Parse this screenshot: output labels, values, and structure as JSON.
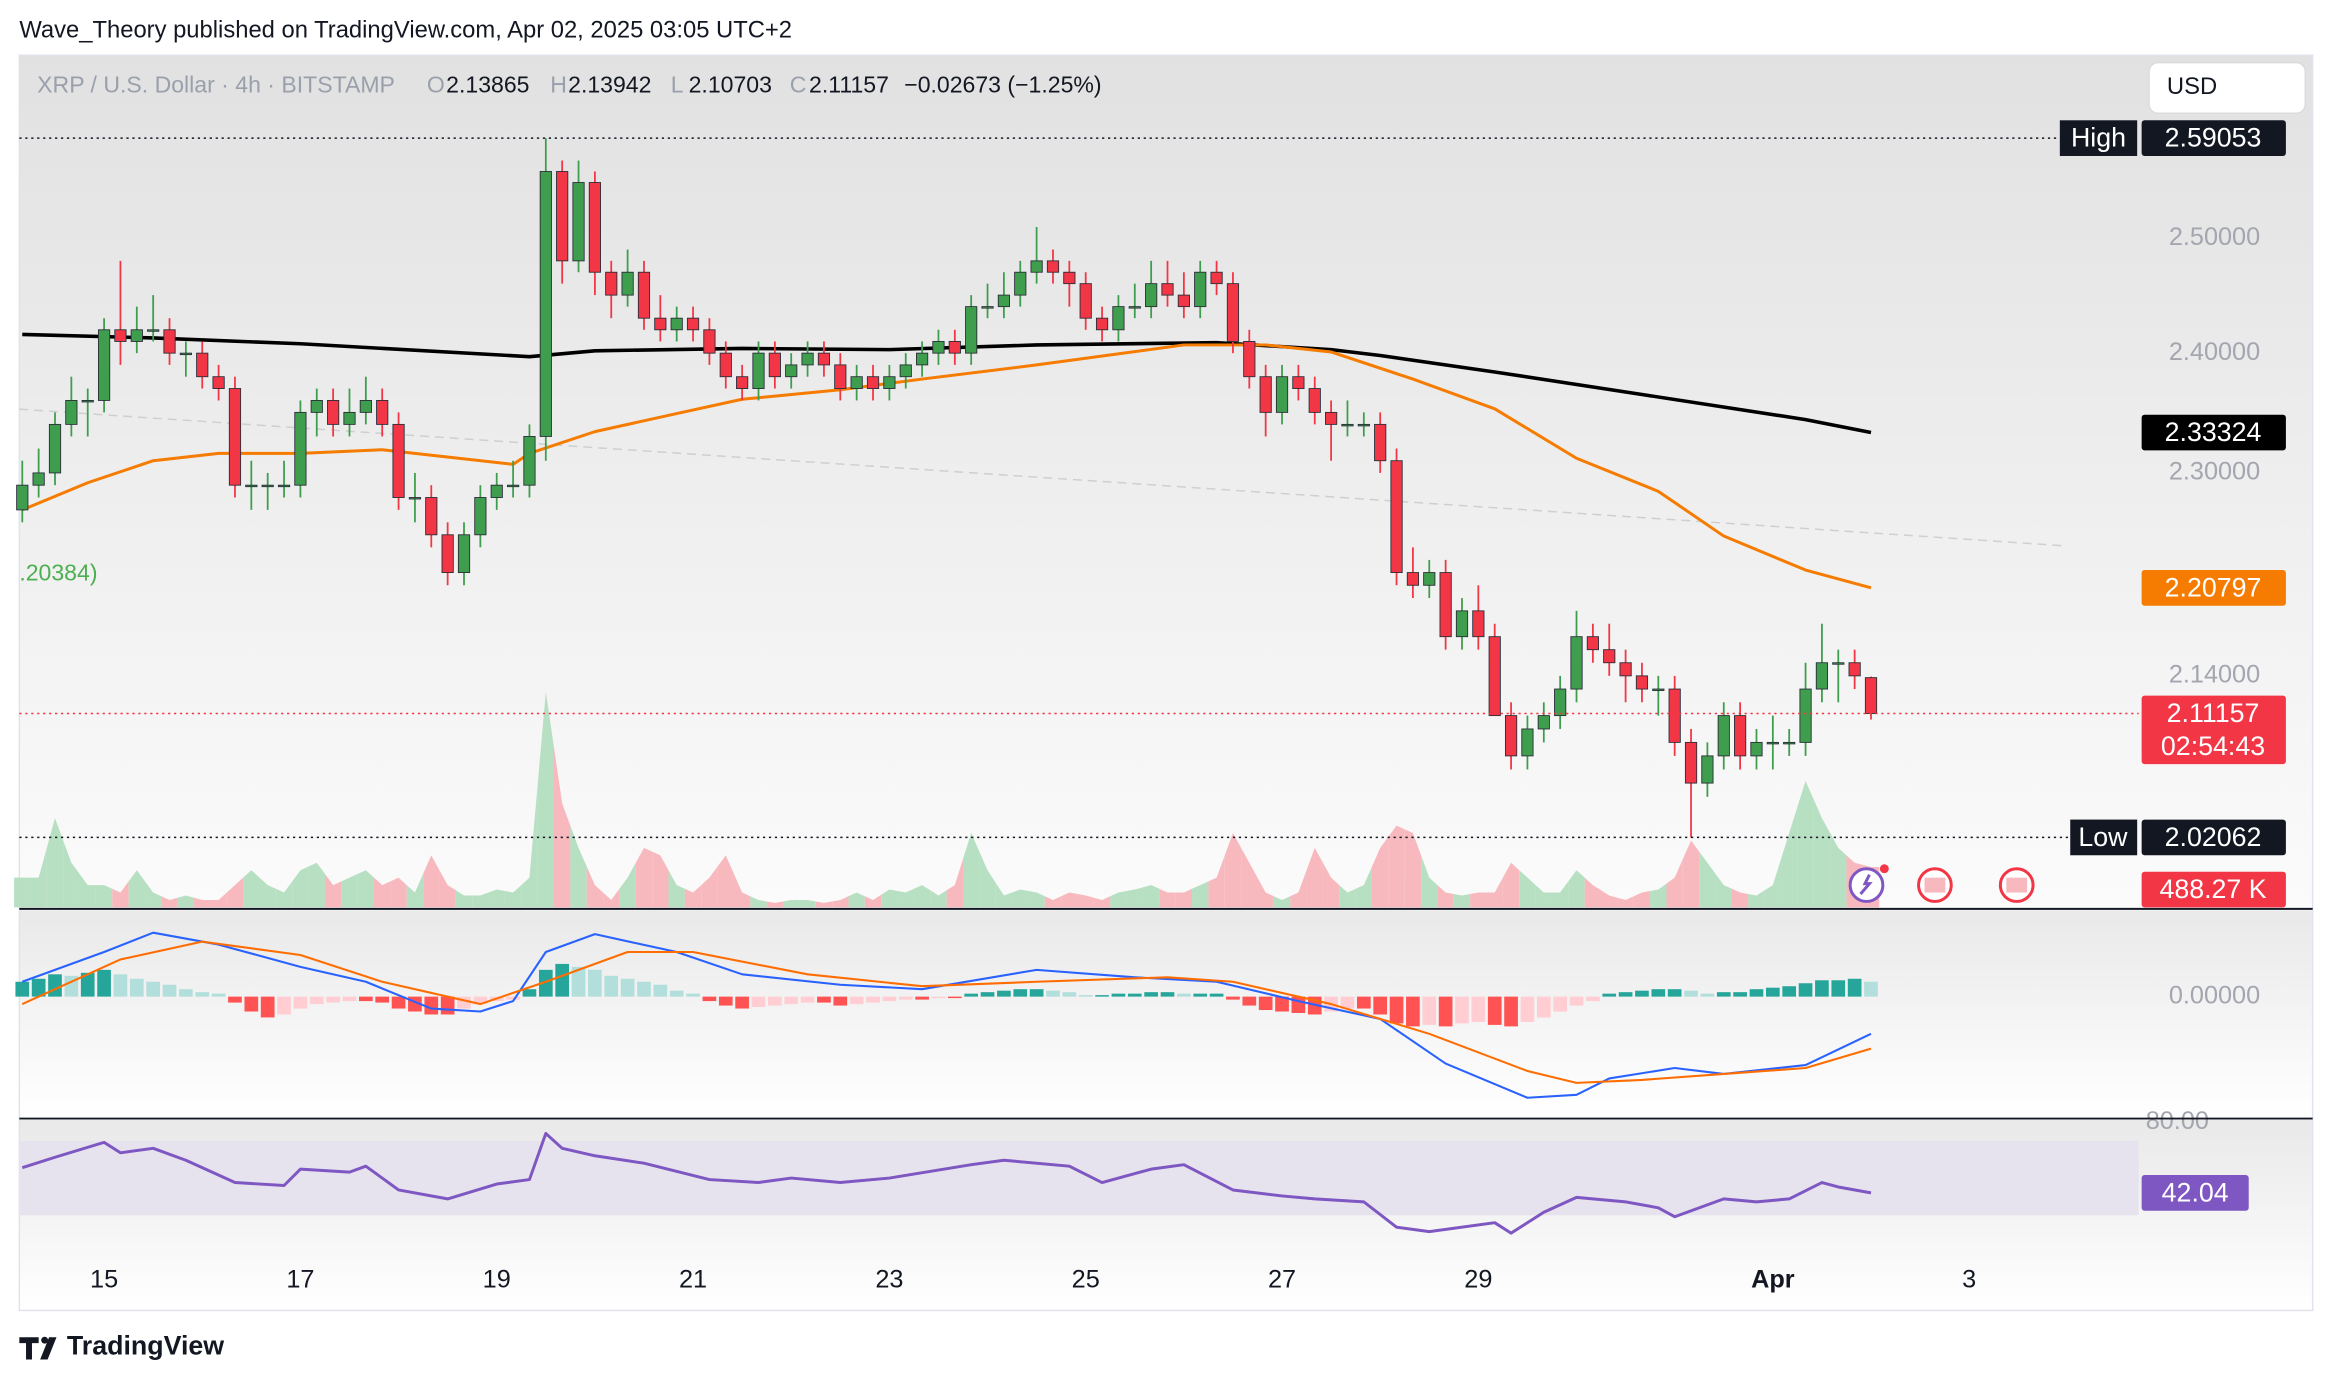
{
  "publisher": "Wave_Theory published on TradingView.com, Apr 02, 2025 03:05 UTC+2",
  "footer_brand": "TradingView",
  "currency_button": "USD",
  "chart_data": {
    "type": "candlestick",
    "symbol": "XRP / U.S. Dollar · 4h · BITSTAMP",
    "ohlc_letters": [
      "O",
      "H",
      "L",
      "C"
    ],
    "change_label": "−0.02673 (−1.25%)",
    "indicator_fragment": ".20384)",
    "up_color": "#3f9e4d",
    "down_color": "#f23645",
    "ohlc": [
      [
        2.27,
        2.31,
        2.26,
        2.29
      ],
      [
        2.29,
        2.32,
        2.28,
        2.3
      ],
      [
        2.3,
        2.35,
        2.29,
        2.34
      ],
      [
        2.34,
        2.38,
        2.33,
        2.36
      ],
      [
        2.36,
        2.37,
        2.33,
        2.36
      ],
      [
        2.36,
        2.43,
        2.35,
        2.42
      ],
      [
        2.42,
        2.48,
        2.39,
        2.41
      ],
      [
        2.41,
        2.44,
        2.4,
        2.42
      ],
      [
        2.42,
        2.45,
        2.41,
        2.42
      ],
      [
        2.42,
        2.43,
        2.39,
        2.4
      ],
      [
        2.4,
        2.41,
        2.38,
        2.4
      ],
      [
        2.4,
        2.41,
        2.37,
        2.38
      ],
      [
        2.38,
        2.39,
        2.36,
        2.37
      ],
      [
        2.37,
        2.38,
        2.28,
        2.29
      ],
      [
        2.29,
        2.31,
        2.27,
        2.29
      ],
      [
        2.29,
        2.3,
        2.27,
        2.29
      ],
      [
        2.29,
        2.31,
        2.28,
        2.29
      ],
      [
        2.29,
        2.36,
        2.28,
        2.35
      ],
      [
        2.35,
        2.37,
        2.33,
        2.36
      ],
      [
        2.36,
        2.37,
        2.33,
        2.34
      ],
      [
        2.34,
        2.37,
        2.33,
        2.35
      ],
      [
        2.35,
        2.38,
        2.34,
        2.36
      ],
      [
        2.36,
        2.37,
        2.33,
        2.34
      ],
      [
        2.34,
        2.35,
        2.27,
        2.28
      ],
      [
        2.28,
        2.3,
        2.26,
        2.28
      ],
      [
        2.28,
        2.29,
        2.24,
        2.25
      ],
      [
        2.25,
        2.26,
        2.21,
        2.22
      ],
      [
        2.22,
        2.26,
        2.21,
        2.25
      ],
      [
        2.25,
        2.29,
        2.24,
        2.28
      ],
      [
        2.28,
        2.3,
        2.27,
        2.29
      ],
      [
        2.29,
        2.31,
        2.28,
        2.29
      ],
      [
        2.29,
        2.34,
        2.28,
        2.33
      ],
      [
        2.33,
        2.59053,
        2.31,
        2.56
      ],
      [
        2.56,
        2.57,
        2.46,
        2.48
      ],
      [
        2.48,
        2.57,
        2.47,
        2.55
      ],
      [
        2.55,
        2.56,
        2.45,
        2.47
      ],
      [
        2.47,
        2.48,
        2.43,
        2.45
      ],
      [
        2.45,
        2.49,
        2.44,
        2.47
      ],
      [
        2.47,
        2.48,
        2.42,
        2.43
      ],
      [
        2.43,
        2.45,
        2.41,
        2.42
      ],
      [
        2.42,
        2.44,
        2.41,
        2.43
      ],
      [
        2.43,
        2.44,
        2.41,
        2.42
      ],
      [
        2.42,
        2.43,
        2.39,
        2.4
      ],
      [
        2.4,
        2.41,
        2.37,
        2.38
      ],
      [
        2.38,
        2.39,
        2.36,
        2.37
      ],
      [
        2.37,
        2.41,
        2.36,
        2.4
      ],
      [
        2.4,
        2.41,
        2.37,
        2.38
      ],
      [
        2.38,
        2.4,
        2.37,
        2.39
      ],
      [
        2.39,
        2.41,
        2.38,
        2.4
      ],
      [
        2.4,
        2.41,
        2.38,
        2.39
      ],
      [
        2.39,
        2.4,
        2.36,
        2.37
      ],
      [
        2.37,
        2.39,
        2.36,
        2.38
      ],
      [
        2.38,
        2.39,
        2.36,
        2.37
      ],
      [
        2.37,
        2.39,
        2.36,
        2.38
      ],
      [
        2.38,
        2.4,
        2.37,
        2.39
      ],
      [
        2.39,
        2.41,
        2.38,
        2.4
      ],
      [
        2.4,
        2.42,
        2.39,
        2.41
      ],
      [
        2.41,
        2.42,
        2.39,
        2.4
      ],
      [
        2.4,
        2.45,
        2.39,
        2.44
      ],
      [
        2.44,
        2.46,
        2.43,
        2.44
      ],
      [
        2.44,
        2.47,
        2.43,
        2.45
      ],
      [
        2.45,
        2.48,
        2.44,
        2.47
      ],
      [
        2.47,
        2.51,
        2.46,
        2.48
      ],
      [
        2.48,
        2.49,
        2.46,
        2.47
      ],
      [
        2.47,
        2.48,
        2.44,
        2.46
      ],
      [
        2.46,
        2.47,
        2.42,
        2.43
      ],
      [
        2.43,
        2.44,
        2.41,
        2.42
      ],
      [
        2.42,
        2.45,
        2.41,
        2.44
      ],
      [
        2.44,
        2.46,
        2.43,
        2.44
      ],
      [
        2.44,
        2.48,
        2.43,
        2.46
      ],
      [
        2.46,
        2.48,
        2.44,
        2.45
      ],
      [
        2.45,
        2.47,
        2.43,
        2.44
      ],
      [
        2.44,
        2.48,
        2.43,
        2.47
      ],
      [
        2.47,
        2.48,
        2.45,
        2.46
      ],
      [
        2.46,
        2.47,
        2.4,
        2.41
      ],
      [
        2.41,
        2.42,
        2.37,
        2.38
      ],
      [
        2.38,
        2.39,
        2.33,
        2.35
      ],
      [
        2.35,
        2.39,
        2.34,
        2.38
      ],
      [
        2.38,
        2.39,
        2.36,
        2.37
      ],
      [
        2.37,
        2.38,
        2.34,
        2.35
      ],
      [
        2.35,
        2.36,
        2.31,
        2.34
      ],
      [
        2.34,
        2.36,
        2.33,
        2.34
      ],
      [
        2.34,
        2.35,
        2.33,
        2.34
      ],
      [
        2.34,
        2.35,
        2.3,
        2.31
      ],
      [
        2.31,
        2.32,
        2.21,
        2.22
      ],
      [
        2.22,
        2.24,
        2.2,
        2.21
      ],
      [
        2.21,
        2.23,
        2.2,
        2.22
      ],
      [
        2.22,
        2.23,
        2.16,
        2.17
      ],
      [
        2.17,
        2.2,
        2.16,
        2.19
      ],
      [
        2.19,
        2.21,
        2.16,
        2.17
      ],
      [
        2.17,
        2.18,
        2.11,
        2.11
      ],
      [
        2.11,
        2.12,
        2.07,
        2.08
      ],
      [
        2.08,
        2.11,
        2.07,
        2.1
      ],
      [
        2.1,
        2.12,
        2.09,
        2.11
      ],
      [
        2.11,
        2.14,
        2.1,
        2.13
      ],
      [
        2.13,
        2.19,
        2.12,
        2.17
      ],
      [
        2.17,
        2.18,
        2.15,
        2.16
      ],
      [
        2.16,
        2.18,
        2.14,
        2.15
      ],
      [
        2.15,
        2.16,
        2.12,
        2.14
      ],
      [
        2.14,
        2.15,
        2.12,
        2.13
      ],
      [
        2.13,
        2.14,
        2.11,
        2.13
      ],
      [
        2.13,
        2.14,
        2.08,
        2.09
      ],
      [
        2.09,
        2.1,
        2.02062,
        2.06
      ],
      [
        2.06,
        2.09,
        2.05,
        2.08
      ],
      [
        2.08,
        2.12,
        2.07,
        2.11
      ],
      [
        2.11,
        2.12,
        2.07,
        2.08
      ],
      [
        2.08,
        2.1,
        2.07,
        2.09
      ],
      [
        2.09,
        2.11,
        2.07,
        2.09
      ],
      [
        2.09,
        2.1,
        2.08,
        2.09
      ],
      [
        2.09,
        2.15,
        2.08,
        2.13
      ],
      [
        2.13,
        2.18,
        2.12,
        2.15
      ],
      [
        2.15,
        2.16,
        2.12,
        2.15
      ],
      [
        2.15,
        2.16,
        2.13,
        2.14
      ],
      [
        2.13865,
        2.13942,
        2.10703,
        2.11157
      ]
    ],
    "xlim": [
      -0.18,
      129.36
    ],
    "xticks": [
      {
        "value": 5,
        "label": "15"
      },
      {
        "value": 17,
        "label": "17"
      },
      {
        "value": 29,
        "label": "19"
      },
      {
        "value": 41,
        "label": "21"
      },
      {
        "value": 53,
        "label": "23"
      },
      {
        "value": 65,
        "label": "25"
      },
      {
        "value": 77,
        "label": "27"
      },
      {
        "value": 89,
        "label": "29"
      },
      {
        "value": 107,
        "label": "Apr"
      },
      {
        "value": 119,
        "label": "3"
      }
    ],
    "ylim": [
      1.971,
      2.668
    ],
    "log_scale": true,
    "yticks": [
      {
        "value": 2.5,
        "label": "2.50000"
      },
      {
        "value": 2.4,
        "label": "2.40000"
      },
      {
        "value": 2.3,
        "label": "2.30000"
      },
      {
        "value": 2.14,
        "label": "2.14000"
      }
    ],
    "high_label": "High",
    "high": 2.59053,
    "low_label": "Low",
    "low": 2.02062,
    "countdown": "02:54:43",
    "moving_averages": [
      {
        "color": "#000000",
        "x": [
          0,
          8,
          17,
          31,
          35,
          44,
          53,
          62,
          73,
          80,
          83,
          90,
          99,
          109,
          113
        ],
        "values": [
          2.416,
          2.413,
          2.408,
          2.397,
          2.402,
          2.404,
          2.403,
          2.407,
          2.409,
          2.403,
          2.398,
          2.384,
          2.365,
          2.344,
          2.33324
        ]
      },
      {
        "color": "#f57c00",
        "x": [
          0,
          4,
          8,
          12,
          17,
          22,
          30,
          31,
          35,
          40,
          44,
          50,
          55,
          62,
          71,
          76,
          80,
          85,
          90,
          95,
          100,
          104,
          109,
          113
        ],
        "values": [
          2.27,
          2.292,
          2.31,
          2.316,
          2.316,
          2.319,
          2.307,
          2.316,
          2.334,
          2.349,
          2.361,
          2.369,
          2.378,
          2.39,
          2.407,
          2.407,
          2.401,
          2.378,
          2.353,
          2.312,
          2.285,
          2.249,
          2.222,
          2.20797
        ]
      }
    ],
    "volume": {
      "up_color": "#b7dfc1",
      "down_color": "#f8b9be",
      "ylim": [
        0,
        10314
      ],
      "last_value_label": "488.27 K",
      "values": [
        360,
        360,
        1080,
        540,
        270,
        270,
        180,
        450,
        180,
        90,
        144,
        90,
        90,
        270,
        450,
        270,
        180,
        450,
        540,
        270,
        360,
        450,
        270,
        360,
        180,
        630,
        270,
        144,
        144,
        216,
        180,
        360,
        2610,
        1260,
        720,
        270,
        90,
        360,
        720,
        630,
        270,
        180,
        360,
        630,
        180,
        90,
        54,
        90,
        90,
        54,
        90,
        180,
        90,
        216,
        180,
        270,
        144,
        270,
        900,
        450,
        144,
        216,
        180,
        90,
        180,
        144,
        90,
        180,
        216,
        270,
        180,
        180,
        270,
        360,
        900,
        540,
        180,
        90,
        180,
        720,
        360,
        180,
        270,
        720,
        990,
        900,
        360,
        180,
        144,
        180,
        180,
        540,
        360,
        180,
        180,
        450,
        270,
        144,
        90,
        180,
        216,
        360,
        810,
        540,
        270,
        180,
        144,
        270,
        900,
        1530,
        1080,
        720,
        540,
        488.27
      ]
    },
    "macd": {
      "ylim": [
        -0.041,
        0.029
      ],
      "yticks": [
        {
          "value": 0,
          "label": "0.00000"
        }
      ],
      "histogram_colors": [
        "#26a69a",
        "#b2dfdb",
        "#ff5252",
        "#ffcdd2"
      ],
      "histogram": [
        0.005,
        0.006,
        0.0075,
        0.007,
        0.008,
        0.009,
        0.0075,
        0.006,
        0.005,
        0.004,
        0.0025,
        0.0015,
        0.001,
        -0.002,
        -0.005,
        -0.007,
        -0.006,
        -0.004,
        -0.0025,
        -0.002,
        -0.0015,
        -0.0015,
        -0.002,
        -0.004,
        -0.005,
        -0.006,
        -0.006,
        -0.004,
        -0.0025,
        -0.0015,
        -0.001,
        0.0025,
        0.009,
        0.011,
        0.01,
        0.009,
        0.007,
        0.006,
        0.005,
        0.004,
        0.002,
        0.001,
        -0.0015,
        -0.003,
        -0.004,
        -0.0035,
        -0.003,
        -0.0025,
        -0.002,
        -0.002,
        -0.003,
        -0.0025,
        -0.002,
        -0.0015,
        -0.001,
        -0.001,
        -0.0005,
        -0.0005,
        0.001,
        0.0015,
        0.002,
        0.0025,
        0.0025,
        0.002,
        0.0015,
        0.0005,
        0.0005,
        0.001,
        0.001,
        0.0015,
        0.0015,
        0.001,
        0.001,
        0.001,
        -0.001,
        -0.003,
        -0.0045,
        -0.005,
        -0.0055,
        -0.006,
        -0.005,
        -0.004,
        -0.004,
        -0.006,
        -0.009,
        -0.01,
        -0.0095,
        -0.01,
        -0.009,
        -0.0085,
        -0.0095,
        -0.01,
        -0.0085,
        -0.007,
        -0.005,
        -0.003,
        -0.0015,
        0.001,
        0.0015,
        0.002,
        0.0025,
        0.0025,
        0.002,
        0.001,
        0.0015,
        0.0015,
        0.0025,
        0.003,
        0.0035,
        0.0045,
        0.0055,
        0.0055,
        0.006,
        0.005
      ],
      "series": [
        {
          "color": "#2962ff",
          "x": [
            0,
            5,
            8,
            12,
            17,
            21,
            25,
            28,
            30,
            32,
            35,
            40,
            44,
            50,
            55,
            62,
            68,
            73,
            78,
            83,
            87,
            92,
            95,
            97,
            101,
            104,
            109,
            113
          ],
          "values": [
            0.005,
            0.015,
            0.0215,
            0.0175,
            0.01,
            0.005,
            -0.004,
            -0.005,
            -0.0015,
            0.015,
            0.021,
            0.015,
            0.0075,
            0.004,
            0.0025,
            0.009,
            0.0065,
            0.005,
            -0.0015,
            -0.0075,
            -0.0225,
            -0.034,
            -0.033,
            -0.0275,
            -0.024,
            -0.026,
            -0.023,
            -0.0125
          ]
        },
        {
          "color": "#ff6d00",
          "x": [
            0,
            6,
            11,
            17,
            22,
            28,
            32,
            37,
            41,
            48,
            55,
            62,
            70,
            74,
            80,
            86,
            92,
            95,
            99,
            104,
            109,
            113
          ],
          "values": [
            -0.0025,
            0.0125,
            0.0185,
            0.014,
            0.005,
            -0.0025,
            0.005,
            0.015,
            0.015,
            0.0075,
            0.0035,
            0.005,
            0.0065,
            0.005,
            -0.0025,
            -0.0125,
            -0.025,
            -0.029,
            -0.028,
            -0.026,
            -0.024,
            -0.0175
          ]
        }
      ]
    },
    "rsi": {
      "ylim": [
        -20.4,
        82
      ],
      "yticks": [
        {
          "value": 80,
          "label": "80.00"
        }
      ],
      "band": [
        70,
        30
      ],
      "color": "#7e57c2",
      "x": [
        0,
        2,
        5,
        6,
        8,
        10,
        13,
        16,
        17,
        20,
        21,
        23,
        26,
        29,
        31,
        32,
        33,
        35,
        38,
        42,
        45,
        47,
        50,
        53,
        58,
        60,
        64,
        66,
        69,
        71,
        74,
        77,
        79,
        82,
        84,
        86,
        90,
        91,
        93,
        95,
        98,
        100,
        101,
        104,
        106,
        108,
        110,
        111,
        113
      ],
      "values": [
        55.6,
        61.2,
        69.2,
        63.6,
        66,
        59.6,
        47.6,
        46,
        54.8,
        53.2,
        56.4,
        43.6,
        38.8,
        46.8,
        49.2,
        74,
        66,
        62,
        58,
        49.2,
        47.6,
        50,
        47.6,
        50,
        57.2,
        59.6,
        56.4,
        47.6,
        54.8,
        57.2,
        43.6,
        40.4,
        38.8,
        37.2,
        23.6,
        21.2,
        26,
        20.4,
        31.6,
        39.6,
        37.2,
        34,
        29.2,
        38.8,
        37.2,
        38.8,
        47.6,
        45.2,
        42.04
      ]
    }
  }
}
